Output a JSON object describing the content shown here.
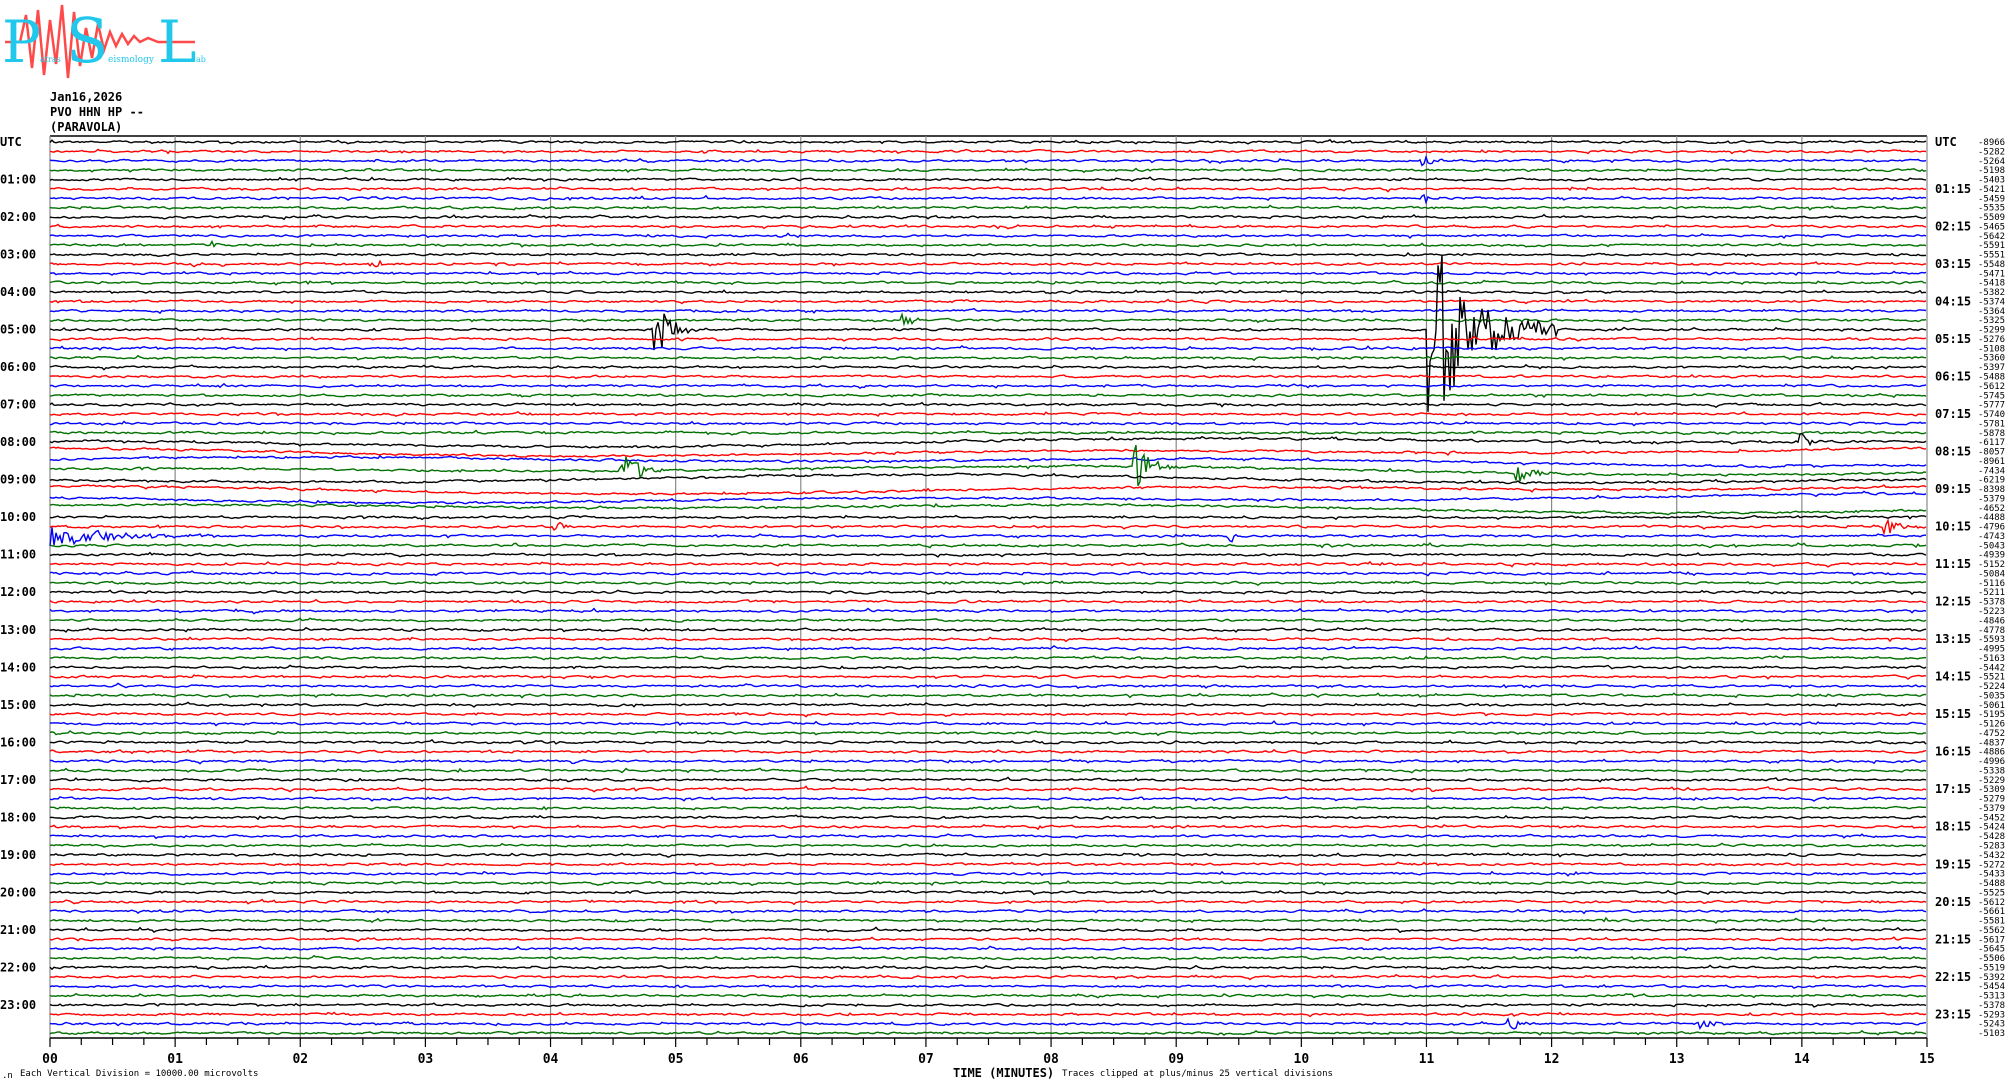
{
  "logo": {
    "big_letters": [
      "P",
      "S",
      "L"
    ],
    "small_words": [
      "atras",
      "eismology",
      "ab"
    ],
    "colors": {
      "letters": "#22c8ec",
      "wave": "#ff4040"
    }
  },
  "header": {
    "date": "Jan16,2026",
    "station": "PVO HHN HP --",
    "site": "(PARAVOLA)"
  },
  "chart_data": {
    "type": "line",
    "subtype": "helicorder",
    "x_axis": {
      "label": "TIME (MINUTES)",
      "range": [
        0,
        15
      ],
      "tick_labels": [
        "00",
        "01",
        "02",
        "03",
        "04",
        "05",
        "06",
        "07",
        "08",
        "09",
        "10",
        "11",
        "12",
        "13",
        "14",
        "15"
      ],
      "minor_ticks_per_minute": 4
    },
    "left_labels": [
      "UTC",
      "01:00",
      "02:00",
      "03:00",
      "04:00",
      "05:00",
      "06:00",
      "07:00",
      "08:00",
      "09:00",
      "10:00",
      "11:00",
      "12:00",
      "13:00",
      "14:00",
      "15:00",
      "16:00",
      "17:00",
      "18:00",
      "19:00",
      "20:00",
      "21:00",
      "22:00",
      "23:00"
    ],
    "right_labels": [
      "UTC",
      "01:15",
      "02:15",
      "03:15",
      "04:15",
      "05:15",
      "06:15",
      "07:15",
      "08:15",
      "09:15",
      "10:15",
      "11:15",
      "12:15",
      "13:15",
      "14:15",
      "15:15",
      "16:15",
      "17:15",
      "18:15",
      "19:15",
      "20:15",
      "21:15",
      "22:15",
      "23:15"
    ],
    "trace_minutes": 15,
    "trace_count": 96,
    "trace_colors": [
      "#000000",
      "#ff0000",
      "#0000ff",
      "#007000"
    ],
    "trace_offsets": [
      "-8966",
      "-5282",
      "-5264",
      "-5198",
      "-5403",
      "-5421",
      "-5459",
      "-5535",
      "-5509",
      "-5465",
      "-5642",
      "-5591",
      "-5551",
      "-5548",
      "-5471",
      "-5418",
      "-5382",
      "-5374",
      "-5364",
      "-5325",
      "-5299",
      "-5276",
      "-5108",
      "-5360",
      "-5397",
      "-5488",
      "-5612",
      "-5745",
      "-5777",
      "-5740",
      "-5781",
      "-5878",
      "-6117",
      "-8057",
      "-8961",
      "-7434",
      "-6219",
      "-8398",
      "-5379",
      "-4652",
      "-4488",
      "-4796",
      "-4743",
      "-5043",
      "-4939",
      "-5152",
      "-5084",
      "-5116",
      "-5211",
      "-5378",
      "-5223",
      "-4846",
      "-4778",
      "-5593",
      "-4995",
      "-5163",
      "-5442",
      "-5521",
      "-5224",
      "-5035",
      "-5061",
      "-5195",
      "-5126",
      "-4752",
      "-4837",
      "-4886",
      "-4996",
      "-5338",
      "-5229",
      "-5309",
      "-5279",
      "-5379",
      "-5452",
      "-5424",
      "-5428",
      "-5283",
      "-5432",
      "-5272",
      "-5433",
      "-5488",
      "-5525",
      "-5612",
      "-5661",
      "-5581",
      "-5562",
      "-5617",
      "-5645",
      "-5506",
      "-5519",
      "-5392",
      "-5454",
      "-5313",
      "-5378",
      "-5293",
      "-5243",
      "-5103"
    ],
    "events": [
      {
        "trace_start": "00:30",
        "minute": 11.0,
        "amplitude_div": 0.5,
        "duration_min": 0.25
      },
      {
        "trace_start": "01:30",
        "minute": 11.0,
        "amplitude_div": 0.5,
        "duration_min": 0.2
      },
      {
        "trace_start": "02:45",
        "minute": 1.3,
        "amplitude_div": 0.4,
        "duration_min": 0.15
      },
      {
        "trace_start": "03:15",
        "minute": 2.6,
        "amplitude_div": 0.3,
        "duration_min": 0.3
      },
      {
        "trace_start": "04:45",
        "minute": 6.85,
        "amplitude_div": 0.8,
        "duration_min": 0.2
      },
      {
        "trace_start": "05:00",
        "minute": 4.85,
        "amplitude_div": 3.0,
        "duration_min": 0.35
      },
      {
        "trace_start": "05:00",
        "minute": 11.05,
        "amplitude_div": 10.0,
        "duration_min": 1.0
      },
      {
        "trace_start": "07:00",
        "minute": 5.95,
        "amplitude_div": 0.3,
        "duration_min": 0.15
      },
      {
        "trace_start": "08:00",
        "minute": 14.0,
        "amplitude_div": 1.0,
        "duration_min": 0.15
      },
      {
        "trace_start": "08:45",
        "minute": 4.6,
        "amplitude_div": 2.0,
        "duration_min": 0.3
      },
      {
        "trace_start": "08:45",
        "minute": 8.7,
        "amplitude_div": 2.5,
        "duration_min": 0.3
      },
      {
        "trace_start": "08:45",
        "minute": 11.75,
        "amplitude_div": 1.2,
        "duration_min": 0.3
      },
      {
        "trace_start": "10:15",
        "minute": 4.05,
        "amplitude_div": 0.6,
        "duration_min": 0.2
      },
      {
        "trace_start": "10:15",
        "minute": 14.7,
        "amplitude_div": 0.8,
        "duration_min": 0.3
      },
      {
        "trace_start": "10:30",
        "minute": 0.0,
        "amplitude_div": 1.2,
        "duration_min": 1.3
      },
      {
        "trace_start": "10:30",
        "minute": 9.45,
        "amplitude_div": 0.6,
        "duration_min": 0.1
      },
      {
        "trace_start": "23:30",
        "minute": 11.7,
        "amplitude_div": 0.5,
        "duration_min": 0.25
      },
      {
        "trace_start": "23:30",
        "minute": 13.2,
        "amplitude_div": 0.6,
        "duration_min": 0.3
      }
    ],
    "grid": "vertical lines each minute"
  },
  "footer": {
    "scale": "Each Vertical Division = 10000.00 microvolts",
    "clip": "Traces clipped at plus/minus 25 vertical divisions",
    "corner": ".n"
  }
}
